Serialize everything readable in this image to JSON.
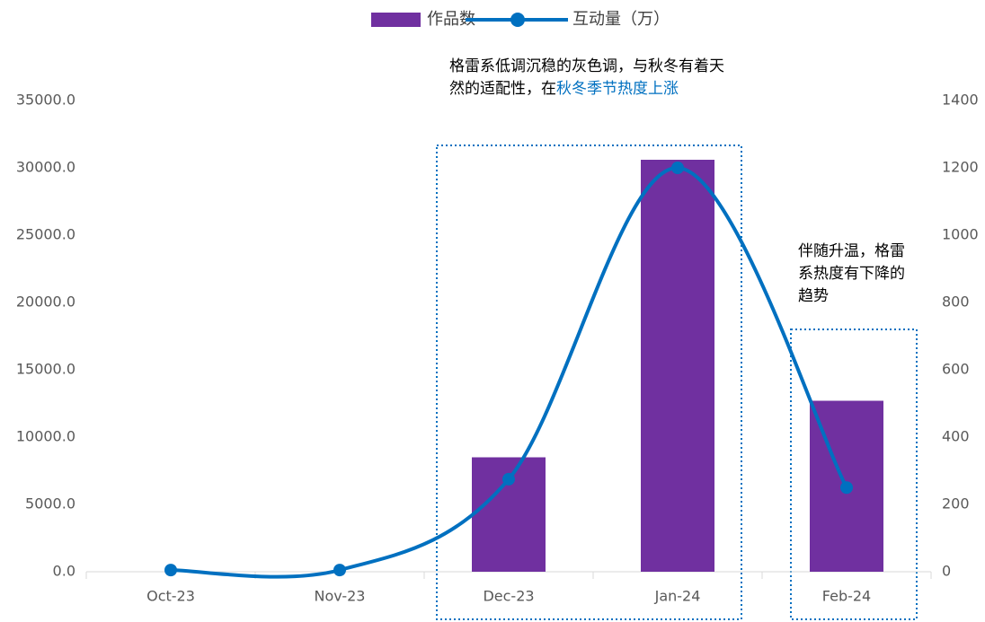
{
  "chart_data": {
    "type": "bar_line",
    "categories": [
      "Oct-23",
      "Nov-23",
      "Dec-23",
      "Jan-24",
      "Feb-24"
    ],
    "series": [
      {
        "name": "作品数",
        "color": "#7030a0",
        "values": [
          0,
          0,
          8500,
          30600,
          12700
        ]
      },
      {
        "name": "互动量（万）",
        "color": "#0070c0",
        "axis": "y2",
        "values": [
          5,
          5,
          275,
          1200,
          250
        ]
      }
    ],
    "ylim": [
      0,
      35000
    ],
    "yticks": [
      {
        "value": 0,
        "label": "0.0"
      },
      {
        "value": 5000,
        "label": "5000.0"
      },
      {
        "value": 10000,
        "label": "10000.0"
      },
      {
        "value": 15000,
        "label": "15000.0"
      },
      {
        "value": 20000,
        "label": "20000.0"
      },
      {
        "value": 25000,
        "label": "25000.0"
      },
      {
        "value": 30000,
        "label": "30000.0"
      },
      {
        "value": 35000,
        "label": "35000.0"
      }
    ],
    "y2lim": [
      0,
      1400
    ],
    "y2ticks": [
      0,
      200,
      400,
      600,
      800,
      1000,
      1200,
      1400
    ],
    "legend": "top",
    "annotations": [
      {
        "text": "格雷系低调沉稳的灰色调，与秋冬有着天然的适配性，在",
        "highlight": "秋冬季节热度上涨"
      },
      {
        "text": "伴随升温，格雷系热度有下降的趋势"
      }
    ]
  }
}
